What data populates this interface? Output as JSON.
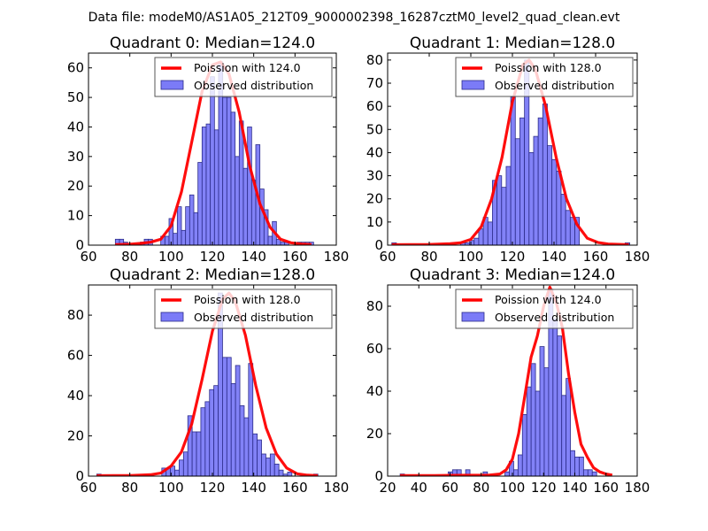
{
  "figure": {
    "suptitle": "Data file: modeM0/AS1A05_212T09_9000002398_16287cztM0_level2_quad_clean.evt"
  },
  "colors": {
    "histogram_fill": "#7b7bf7",
    "histogram_edge": "#2c2c8a",
    "poisson_line": "#ff0000"
  },
  "chart_data": [
    {
      "type": "bar",
      "title": "Quadrant 0: Median=124.0",
      "median": 124.0,
      "xlim": [
        60,
        180
      ],
      "ylim": [
        0,
        65
      ],
      "xticks": [
        60,
        80,
        100,
        120,
        140,
        160,
        180
      ],
      "yticks": [
        0,
        10,
        20,
        30,
        40,
        50,
        60
      ],
      "legend": {
        "placement": "top-right",
        "entries": [
          "Poission with 124.0",
          "Observed distribution"
        ]
      },
      "bin_width": 2,
      "bins_start": [
        73,
        75,
        77,
        79,
        81,
        83,
        85,
        87,
        89,
        91,
        93,
        95,
        97,
        99,
        101,
        103,
        105,
        107,
        109,
        111,
        113,
        115,
        117,
        119,
        121,
        123,
        125,
        127,
        129,
        131,
        133,
        135,
        137,
        139,
        141,
        143,
        145,
        147,
        149,
        151,
        153,
        155,
        157,
        159,
        161,
        163,
        165,
        167
      ],
      "counts": [
        2,
        2,
        1,
        0,
        0,
        0,
        1,
        2,
        2,
        0,
        0,
        3,
        3,
        9,
        4,
        13,
        5,
        13,
        17,
        11,
        28,
        40,
        41,
        57,
        39,
        62,
        50,
        50,
        45,
        30,
        42,
        26,
        40,
        22,
        34,
        19,
        12,
        3,
        8,
        2,
        1,
        1,
        0,
        0,
        1,
        1,
        1,
        1
      ],
      "poisson_mean": 124.0,
      "poisson_x": [
        73,
        80,
        85,
        90,
        95,
        100,
        105,
        110,
        115,
        120,
        124,
        128,
        133,
        138,
        143,
        148,
        153,
        158,
        163,
        168
      ],
      "poisson_y": [
        0.2,
        0.3,
        0.6,
        1.0,
        2.0,
        6.5,
        18,
        35,
        52,
        61,
        62,
        58,
        45,
        27,
        14,
        6,
        2,
        0.8,
        0.4,
        0.2
      ]
    },
    {
      "type": "bar",
      "title": "Quadrant 1: Median=128.0",
      "median": 128.0,
      "xlim": [
        60,
        180
      ],
      "ylim": [
        0,
        83
      ],
      "xticks": [
        60,
        80,
        100,
        120,
        140,
        160,
        180
      ],
      "yticks": [
        0,
        10,
        20,
        30,
        40,
        50,
        60,
        70,
        80
      ],
      "legend": {
        "placement": "top-right",
        "entries": [
          "Poission with 128.0",
          "Observed distribution"
        ]
      },
      "bin_width": 2.2,
      "bins_start": [
        62,
        64.2,
        66.4,
        68.6,
        70.8,
        73,
        75.2,
        77.4,
        79.6,
        81.8,
        84,
        86.2,
        88.4,
        90.6,
        92.8,
        95,
        97.2,
        99.4,
        101.6,
        103.8,
        106,
        108.2,
        110.4,
        112.6,
        114.8,
        117,
        119.2,
        121.4,
        123.6,
        125.8,
        128,
        130.2,
        132.4,
        134.6,
        136.8,
        139,
        141.2,
        143.4,
        145.6,
        147.8,
        150,
        152.2,
        154.4,
        156.6,
        158.8,
        161,
        163.2,
        165.4,
        167.6,
        169.8,
        172,
        174.2
      ],
      "counts": [
        1,
        0,
        0,
        0,
        0,
        0,
        0,
        0,
        0,
        0,
        0,
        0,
        0,
        0,
        0,
        1,
        1,
        2,
        3,
        7,
        12,
        10,
        28,
        30,
        25,
        34,
        64,
        46,
        55,
        80,
        40,
        47,
        55,
        61,
        43,
        37,
        32,
        22,
        15,
        12,
        12,
        0,
        0,
        0,
        0,
        0,
        0,
        0,
        0,
        0,
        0,
        1
      ],
      "poisson_mean": 128.0,
      "poisson_x": [
        62,
        80,
        90,
        95,
        100,
        105,
        110,
        115,
        120,
        125,
        128,
        131,
        136,
        141,
        146,
        151,
        156,
        161,
        166,
        176
      ],
      "poisson_y": [
        0.2,
        0.3,
        0.6,
        1.0,
        2.5,
        8,
        20,
        38,
        62,
        78,
        80,
        76,
        60,
        38,
        20,
        9,
        3,
        1.2,
        0.5,
        0.2
      ]
    },
    {
      "type": "bar",
      "title": "Quadrant 2: Median=128.0",
      "median": 128.0,
      "xlim": [
        60,
        180
      ],
      "ylim": [
        0,
        95
      ],
      "xticks": [
        60,
        80,
        100,
        120,
        140,
        160,
        180
      ],
      "yticks": [
        0,
        20,
        40,
        60,
        80
      ],
      "legend": {
        "placement": "top-right",
        "entries": [
          "Poission with 128.0",
          "Observed distribution"
        ]
      },
      "bin_width": 2.1,
      "bins_start": [
        64,
        66.1,
        68.2,
        70.3,
        72.4,
        74.5,
        76.6,
        78.7,
        80.8,
        82.9,
        85,
        87.1,
        89.2,
        91.3,
        93.4,
        95.5,
        97.6,
        99.7,
        101.8,
        103.9,
        106,
        108.1,
        110.2,
        112.3,
        114.4,
        116.5,
        118.6,
        120.7,
        122.8,
        124.9,
        127,
        129.1,
        131.2,
        133.3,
        135.4,
        137.5,
        139.6,
        141.7,
        143.8,
        145.9,
        148,
        150.1,
        152.2,
        154.3,
        156.4,
        158.5,
        160.6,
        162.7,
        164.8,
        166.9,
        169
      ],
      "counts": [
        1,
        0,
        0,
        0,
        0,
        0,
        0,
        0,
        0,
        0,
        0,
        0,
        0,
        0,
        0,
        4,
        4,
        5,
        3,
        8,
        12,
        30,
        22,
        22,
        34,
        37,
        43,
        45,
        91,
        59,
        59,
        46,
        55,
        35,
        29,
        56,
        21,
        18,
        11,
        9,
        11,
        6,
        3,
        1,
        2,
        0,
        0,
        0,
        0,
        0,
        1
      ],
      "poisson_mean": 128.0,
      "poisson_x": [
        64,
        80,
        90,
        95,
        100,
        105,
        110,
        115,
        120,
        125,
        128,
        131,
        136,
        141,
        146,
        151,
        156,
        161,
        166,
        171
      ],
      "poisson_y": [
        0.2,
        0.3,
        0.7,
        1.5,
        5,
        12,
        26,
        48,
        72,
        88,
        91,
        87,
        70,
        45,
        24,
        11,
        4,
        1.2,
        0.5,
        0.2
      ]
    },
    {
      "type": "bar",
      "title": "Quadrant 3: Median=124.0",
      "median": 124.0,
      "xlim": [
        20,
        180
      ],
      "ylim": [
        0,
        90
      ],
      "xticks": [
        20,
        40,
        60,
        80,
        100,
        120,
        140,
        160,
        180
      ],
      "yticks": [
        0,
        20,
        40,
        60,
        80
      ],
      "legend": {
        "placement": "top-right",
        "entries": [
          "Poission with 124.0",
          "Observed distribution"
        ]
      },
      "bin_width": 2.8,
      "bins_start": [
        28,
        30.8,
        33.6,
        36.4,
        39.2,
        42,
        44.8,
        47.6,
        50.4,
        53.2,
        56,
        58.8,
        61.6,
        64.4,
        67.2,
        70,
        72.8,
        75.6,
        78.4,
        81.2,
        84,
        86.8,
        89.6,
        92.4,
        95.2,
        98,
        100.8,
        103.6,
        106.4,
        109.2,
        112,
        114.8,
        117.6,
        120.4,
        123.2,
        126,
        128.8,
        131.6,
        134.4,
        137.2,
        140,
        142.8,
        145.6,
        148.4,
        151.2,
        154,
        156.8,
        159.6,
        162.4
      ],
      "counts": [
        1,
        0,
        0,
        0,
        0,
        0,
        0,
        0,
        0,
        0,
        0,
        2,
        3,
        3,
        0,
        3,
        0,
        0,
        0,
        2,
        0,
        0,
        0,
        0,
        2,
        7,
        3,
        10,
        29,
        42,
        53,
        40,
        61,
        51,
        88,
        74,
        66,
        38,
        46,
        12,
        9,
        9,
        3,
        3,
        2,
        0,
        0,
        0,
        0
      ],
      "poisson_mean": 124.0,
      "poisson_x": [
        28,
        50,
        70,
        85,
        92,
        96,
        100,
        104,
        108,
        112,
        116,
        120,
        124,
        128,
        132,
        136,
        140,
        144,
        148,
        152,
        156,
        160,
        164
      ],
      "poisson_y": [
        0.3,
        0.3,
        0.4,
        0.5,
        1,
        3,
        8,
        20,
        38,
        56,
        66,
        80,
        89,
        82,
        70,
        48,
        30,
        15,
        9,
        4,
        2,
        1,
        0.5
      ]
    }
  ]
}
